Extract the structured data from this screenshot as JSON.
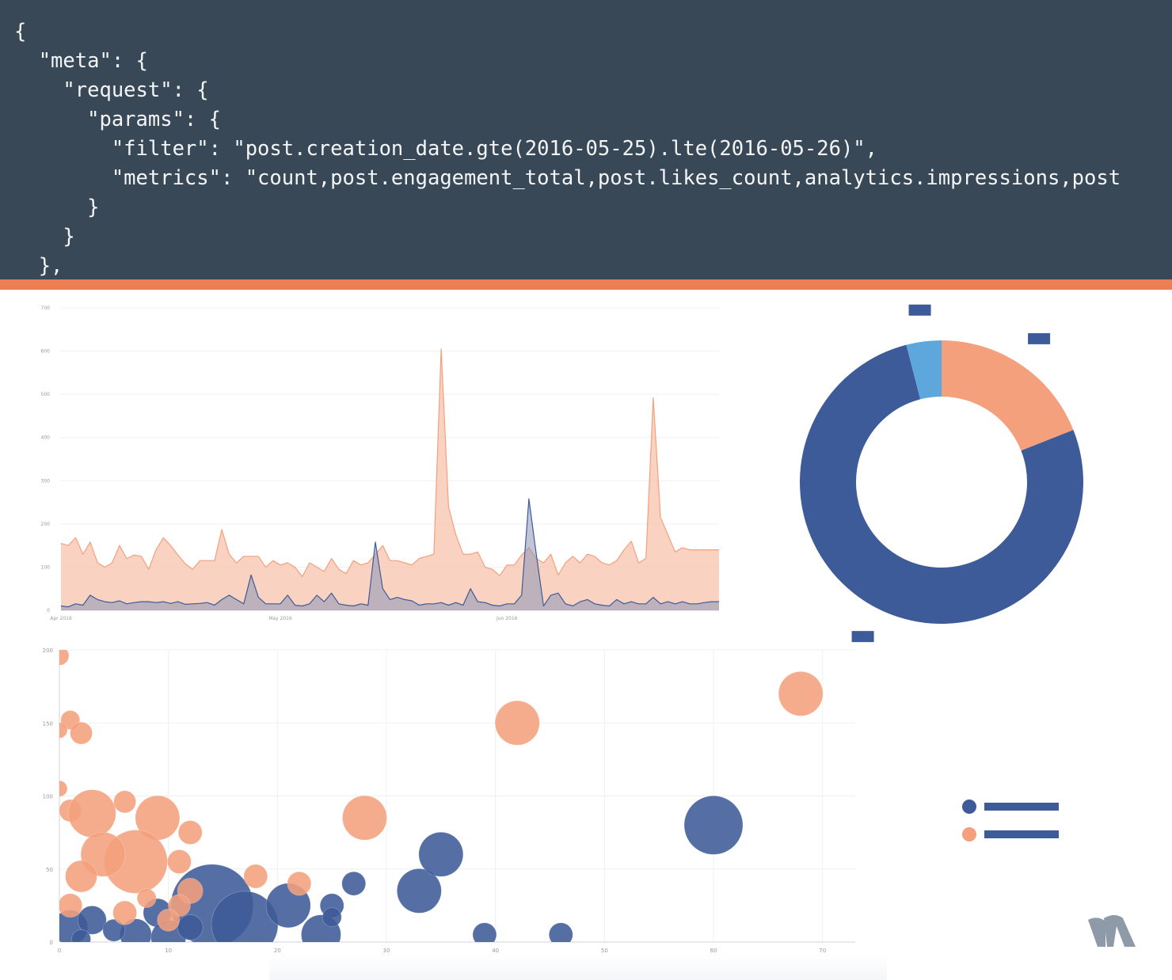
{
  "code": {
    "lines": [
      "{",
      "  \"meta\": {",
      "    \"request\": {",
      "      \"params\": {",
      "        \"filter\": \"post.creation_date.gte(2016-05-25).lte(2016-05-26)\",",
      "        \"metrics\": \"count,post.engagement_total,post.likes_count,analytics.impressions,post",
      "      }",
      "    }",
      "  },"
    ]
  },
  "colors": {
    "panel": "#394857",
    "code_text": "#f3f5f7",
    "accent": "#ee7d53",
    "series_orange": "#f4a07c",
    "series_orange_fill": "#f8c7b2",
    "series_navy": "#3d5b98",
    "series_lightblue": "#5ea7dc"
  },
  "chart_data": [
    {
      "type": "area",
      "x_tick_labels": [
        "Apr 2016",
        "May 2016",
        "Jun 2016"
      ],
      "y_tick_labels": [
        "0",
        "100",
        "200",
        "300",
        "400",
        "500",
        "600",
        "700"
      ],
      "ylim": [
        0,
        700
      ],
      "xlim": [
        "2016-04-01",
        "2016-06-30"
      ],
      "grid": "horizontal",
      "x": [
        "2016-04-01",
        "2016-04-02",
        "2016-04-03",
        "2016-04-04",
        "2016-04-05",
        "2016-04-06",
        "2016-04-07",
        "2016-04-08",
        "2016-04-09",
        "2016-04-10",
        "2016-04-11",
        "2016-04-12",
        "2016-04-13",
        "2016-04-14",
        "2016-04-15",
        "2016-04-16",
        "2016-04-17",
        "2016-04-18",
        "2016-04-19",
        "2016-04-20",
        "2016-04-21",
        "2016-04-22",
        "2016-04-23",
        "2016-04-24",
        "2016-04-25",
        "2016-04-26",
        "2016-04-27",
        "2016-04-28",
        "2016-04-29",
        "2016-04-30",
        "2016-05-01",
        "2016-05-02",
        "2016-05-03",
        "2016-05-04",
        "2016-05-05",
        "2016-05-06",
        "2016-05-07",
        "2016-05-08",
        "2016-05-09",
        "2016-05-10",
        "2016-05-11",
        "2016-05-12",
        "2016-05-13",
        "2016-05-14",
        "2016-05-15",
        "2016-05-16",
        "2016-05-17",
        "2016-05-18",
        "2016-05-19",
        "2016-05-20",
        "2016-05-21",
        "2016-05-22",
        "2016-05-23",
        "2016-05-24",
        "2016-05-25",
        "2016-05-26",
        "2016-05-27",
        "2016-05-28",
        "2016-05-29",
        "2016-05-30",
        "2016-05-31",
        "2016-06-01",
        "2016-06-02",
        "2016-06-03",
        "2016-06-04",
        "2016-06-05",
        "2016-06-06",
        "2016-06-07",
        "2016-06-08",
        "2016-06-09",
        "2016-06-10",
        "2016-06-11",
        "2016-06-12",
        "2016-06-13",
        "2016-06-14",
        "2016-06-15",
        "2016-06-16",
        "2016-06-17",
        "2016-06-18",
        "2016-06-19",
        "2016-06-20",
        "2016-06-21",
        "2016-06-22",
        "2016-06-23",
        "2016-06-24",
        "2016-06-25",
        "2016-06-26",
        "2016-06-27",
        "2016-06-28",
        "2016-06-29",
        "2016-06-30"
      ],
      "series": [
        {
          "values": [
            155,
            150,
            168,
            130,
            158,
            110,
            100,
            110,
            150,
            120,
            128,
            125,
            95,
            140,
            168,
            150,
            128,
            108,
            95,
            115,
            115,
            115,
            187,
            130,
            110,
            125,
            125,
            125,
            100,
            115,
            105,
            110,
            100,
            78,
            110,
            100,
            90,
            120,
            95,
            85,
            115,
            105,
            110,
            130,
            150,
            115,
            115,
            110,
            105,
            120,
            125,
            130,
            605,
            240,
            175,
            130,
            130,
            135,
            100,
            95,
            80,
            105,
            105,
            128,
            145,
            120,
            110,
            130,
            82,
            110,
            125,
            110,
            130,
            125,
            110,
            105,
            115,
            140,
            160,
            110,
            120,
            492,
            215,
            175,
            135,
            145,
            140,
            140,
            140,
            140,
            140
          ]
        },
        {
          "values": [
            10,
            8,
            15,
            12,
            35,
            25,
            20,
            18,
            22,
            15,
            18,
            20,
            20,
            18,
            20,
            16,
            20,
            14,
            15,
            16,
            18,
            12,
            25,
            35,
            25,
            15,
            82,
            30,
            15,
            15,
            15,
            35,
            12,
            10,
            15,
            35,
            20,
            40,
            15,
            12,
            10,
            15,
            12,
            158,
            50,
            25,
            30,
            25,
            22,
            12,
            15,
            15,
            18,
            12,
            18,
            12,
            50,
            20,
            18,
            12,
            10,
            15,
            15,
            35,
            258,
            130,
            10,
            35,
            40,
            15,
            10,
            20,
            25,
            15,
            12,
            10,
            25,
            15,
            20,
            15,
            15,
            30,
            15,
            20,
            15,
            20,
            15,
            15,
            18,
            20,
            20
          ]
        }
      ]
    },
    {
      "type": "pie",
      "donut": true,
      "slices": [
        {
          "value": 19,
          "color": "#f4a07c"
        },
        {
          "value": 77,
          "color": "#3d5b98"
        },
        {
          "value": 4,
          "color": "#5ea7dc"
        }
      ]
    },
    {
      "type": "scatter",
      "bubble": true,
      "x_tick_labels": [
        "0",
        "10",
        "20",
        "30",
        "40",
        "50",
        "60",
        "70"
      ],
      "y_tick_labels": [
        "0",
        "50",
        "100",
        "150",
        "200"
      ],
      "xlim": [
        0,
        73
      ],
      "ylim": [
        0,
        200
      ],
      "grid": "both",
      "legend": "right",
      "series": [
        {
          "color": "#3d5b98",
          "points": [
            {
              "x": 14,
              "y": 25,
              "size": 52
            },
            {
              "x": 17,
              "y": 12,
              "size": 42
            },
            {
              "x": 21,
              "y": 25,
              "size": 28
            },
            {
              "x": 24,
              "y": 5,
              "size": 25
            },
            {
              "x": 1,
              "y": 10,
              "size": 22
            },
            {
              "x": 3,
              "y": 15,
              "size": 18
            },
            {
              "x": 7,
              "y": 5,
              "size": 20
            },
            {
              "x": 9,
              "y": 20,
              "size": 18
            },
            {
              "x": 10,
              "y": 3,
              "size": 22
            },
            {
              "x": 2,
              "y": 2,
              "size": 12
            },
            {
              "x": 5,
              "y": 8,
              "size": 14
            },
            {
              "x": 12,
              "y": 10,
              "size": 16
            },
            {
              "x": 27,
              "y": 40,
              "size": 15
            },
            {
              "x": 25,
              "y": 25,
              "size": 15
            },
            {
              "x": 25,
              "y": 17,
              "size": 12
            },
            {
              "x": 33,
              "y": 35,
              "size": 28
            },
            {
              "x": 35,
              "y": 60,
              "size": 28
            },
            {
              "x": 39,
              "y": 5,
              "size": 15
            },
            {
              "x": 46,
              "y": 5,
              "size": 15
            },
            {
              "x": 60,
              "y": 80,
              "size": 37
            }
          ]
        },
        {
          "color": "#f4a07c",
          "points": [
            {
              "x": 0,
              "y": 196,
              "size": 12
            },
            {
              "x": 1,
              "y": 152,
              "size": 12
            },
            {
              "x": 2,
              "y": 143,
              "size": 14
            },
            {
              "x": 0,
              "y": 145,
              "size": 10
            },
            {
              "x": 0,
              "y": 105,
              "size": 10
            },
            {
              "x": 1,
              "y": 90,
              "size": 14
            },
            {
              "x": 3,
              "y": 88,
              "size": 30
            },
            {
              "x": 6,
              "y": 96,
              "size": 14
            },
            {
              "x": 9,
              "y": 85,
              "size": 28
            },
            {
              "x": 7,
              "y": 55,
              "size": 40
            },
            {
              "x": 4,
              "y": 60,
              "size": 28
            },
            {
              "x": 2,
              "y": 45,
              "size": 20
            },
            {
              "x": 1,
              "y": 25,
              "size": 15
            },
            {
              "x": 12,
              "y": 75,
              "size": 15
            },
            {
              "x": 11,
              "y": 55,
              "size": 15
            },
            {
              "x": 12,
              "y": 35,
              "size": 16
            },
            {
              "x": 11,
              "y": 25,
              "size": 14
            },
            {
              "x": 10,
              "y": 15,
              "size": 14
            },
            {
              "x": 18,
              "y": 45,
              "size": 15
            },
            {
              "x": 22,
              "y": 40,
              "size": 15
            },
            {
              "x": 28,
              "y": 85,
              "size": 28
            },
            {
              "x": 42,
              "y": 150,
              "size": 28
            },
            {
              "x": 68,
              "y": 170,
              "size": 28
            },
            {
              "x": 6,
              "y": 20,
              "size": 15
            },
            {
              "x": 8,
              "y": 30,
              "size": 12
            }
          ]
        }
      ]
    }
  ]
}
